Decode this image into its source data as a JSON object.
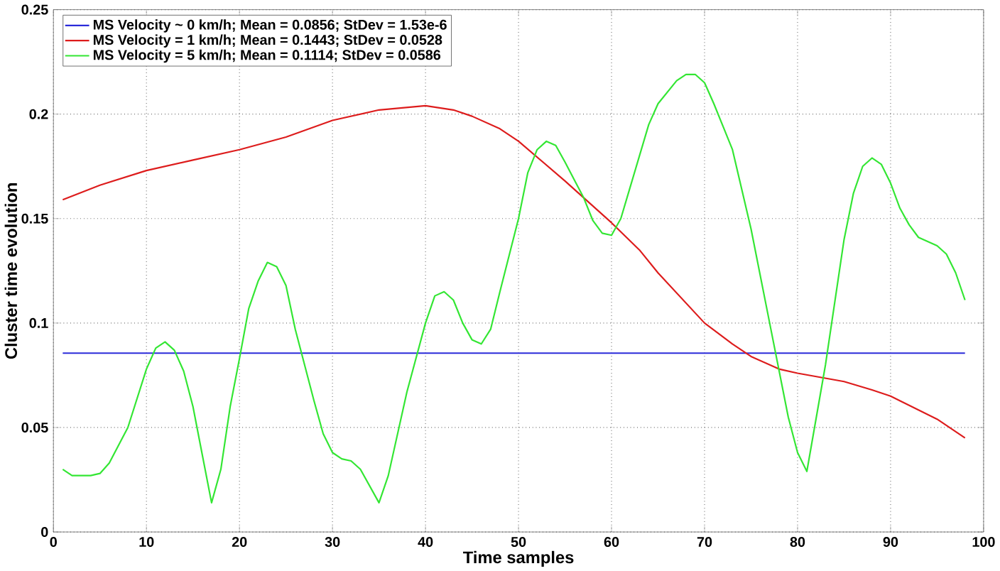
{
  "chart_data": {
    "type": "line",
    "xlabel": "Time samples",
    "ylabel": "Cluster time evolution",
    "xlim": [
      0,
      100
    ],
    "xticks": [
      0,
      10,
      20,
      30,
      40,
      50,
      60,
      70,
      80,
      90,
      100
    ],
    "ylim": [
      0,
      0.25
    ],
    "yticks": [
      0,
      0.05,
      0.1,
      0.15,
      0.2,
      0.25
    ],
    "grid": true,
    "legend": "top left",
    "marker": "none",
    "line_style": "solid",
    "series": [
      {
        "name": "MS Velocity ~ 0 km/h;  Mean = 0.0856;  StDev = 1.53e-6",
        "color": "#2b2bd9",
        "x": [
          1,
          98
        ],
        "values": [
          0.0856,
          0.0856
        ]
      },
      {
        "name": "MS Velocity = 1 km/h;  Mean = 0.1443;  StDev = 0.0528",
        "color": "#dd1c1c",
        "x": [
          1,
          5,
          10,
          15,
          20,
          25,
          30,
          35,
          40,
          43,
          45,
          48,
          50,
          55,
          60,
          63,
          65,
          70,
          73,
          75,
          78,
          80,
          85,
          88,
          90,
          95,
          98
        ],
        "values": [
          0.159,
          0.166,
          0.173,
          0.178,
          0.183,
          0.189,
          0.197,
          0.202,
          0.204,
          0.202,
          0.199,
          0.193,
          0.187,
          0.168,
          0.148,
          0.135,
          0.124,
          0.1,
          0.09,
          0.084,
          0.078,
          0.076,
          0.072,
          0.068,
          0.065,
          0.054,
          0.045
        ]
      },
      {
        "name": "MS Velocity = 5 km/h;  Mean = 0.1114;  StDev = 0.0586",
        "color": "#33e633",
        "x": [
          1,
          2,
          4,
          5,
          6,
          8,
          10,
          11,
          12,
          13,
          14,
          15,
          16,
          17,
          18,
          19,
          20,
          21,
          22,
          23,
          24,
          25,
          26,
          27,
          28,
          29,
          30,
          31,
          32,
          33,
          35,
          36,
          38,
          40,
          41,
          42,
          43,
          44,
          45,
          46,
          47,
          48,
          50,
          51,
          52,
          53,
          54,
          55,
          57,
          58,
          59,
          60,
          61,
          62,
          64,
          65,
          67,
          68,
          69,
          70,
          71,
          73,
          75,
          77,
          79,
          80,
          81,
          83,
          85,
          86,
          87,
          88,
          89,
          90,
          91,
          92,
          93,
          95,
          96,
          97,
          98
        ],
        "values": [
          0.03,
          0.027,
          0.027,
          0.028,
          0.033,
          0.05,
          0.078,
          0.088,
          0.091,
          0.087,
          0.077,
          0.06,
          0.037,
          0.014,
          0.03,
          0.06,
          0.083,
          0.107,
          0.12,
          0.129,
          0.127,
          0.118,
          0.097,
          0.08,
          0.063,
          0.047,
          0.038,
          0.035,
          0.034,
          0.03,
          0.014,
          0.027,
          0.067,
          0.1,
          0.113,
          0.115,
          0.111,
          0.1,
          0.092,
          0.09,
          0.097,
          0.115,
          0.15,
          0.172,
          0.183,
          0.187,
          0.185,
          0.177,
          0.16,
          0.149,
          0.143,
          0.142,
          0.15,
          0.165,
          0.195,
          0.205,
          0.216,
          0.219,
          0.219,
          0.215,
          0.205,
          0.183,
          0.145,
          0.1,
          0.055,
          0.038,
          0.029,
          0.08,
          0.14,
          0.162,
          0.175,
          0.179,
          0.176,
          0.167,
          0.155,
          0.147,
          0.141,
          0.137,
          0.133,
          0.124,
          0.111
        ]
      }
    ]
  }
}
